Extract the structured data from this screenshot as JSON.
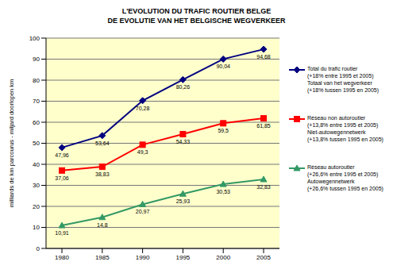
{
  "chart_data": {
    "type": "line",
    "title": "L'EVOLUTION DU TRAFIC ROUTIER BELGE\nDE EVOLUTIE VAN HET BELGISCHE WEGVERKEER",
    "y_label": "milliards de km parcourus - miljard doorlopen km",
    "categories": [
      "1980",
      "1985",
      "1990",
      "1995",
      "2000",
      "2005"
    ],
    "series": [
      {
        "name": "Total du trafic routier\n(+18% entre 1995 et 2005)\nTotaal van het wegverkeer\n(+18% tussen 1995 en 2005)",
        "color": "#000080",
        "marker": "diamond",
        "values": [
          47.96,
          53.64,
          70.28,
          80.26,
          90.04,
          94.68
        ],
        "value_labels": [
          "47,96",
          "53,64",
          "70,28",
          "80,26",
          "90,04",
          "94,68"
        ]
      },
      {
        "name": "Réseau non autoroutier\n(+13,8% entre 1995 et 2005)\nNiet-autowegennetwerk\n(+13,8% tussen 1995 en 2005)",
        "color": "#ff0000",
        "marker": "square",
        "values": [
          37.06,
          38.83,
          49.3,
          54.33,
          59.5,
          61.85
        ],
        "value_labels": [
          "37,06",
          "38,83",
          "49,3",
          "54,33",
          "59,5",
          "61,85"
        ]
      },
      {
        "name": "Réseau autoroutier\n(+26,6% entre 1995 et 2005)\nAutowegennetwerk\n(+26,6% tussen 1995 en 2005)",
        "color": "#339966",
        "marker": "triangle",
        "values": [
          10.91,
          14.8,
          20.97,
          25.93,
          30.53,
          32.83
        ],
        "value_labels": [
          "10,91",
          "14,8",
          "20,97",
          "25,93",
          "30,53",
          "32,83"
        ]
      }
    ],
    "ylim": [
      0,
      100
    ],
    "yticks": [
      0,
      10,
      20,
      30,
      40,
      50,
      60,
      70,
      80,
      90,
      100
    ],
    "grid": true,
    "legend": "right",
    "data_labels": true
  }
}
